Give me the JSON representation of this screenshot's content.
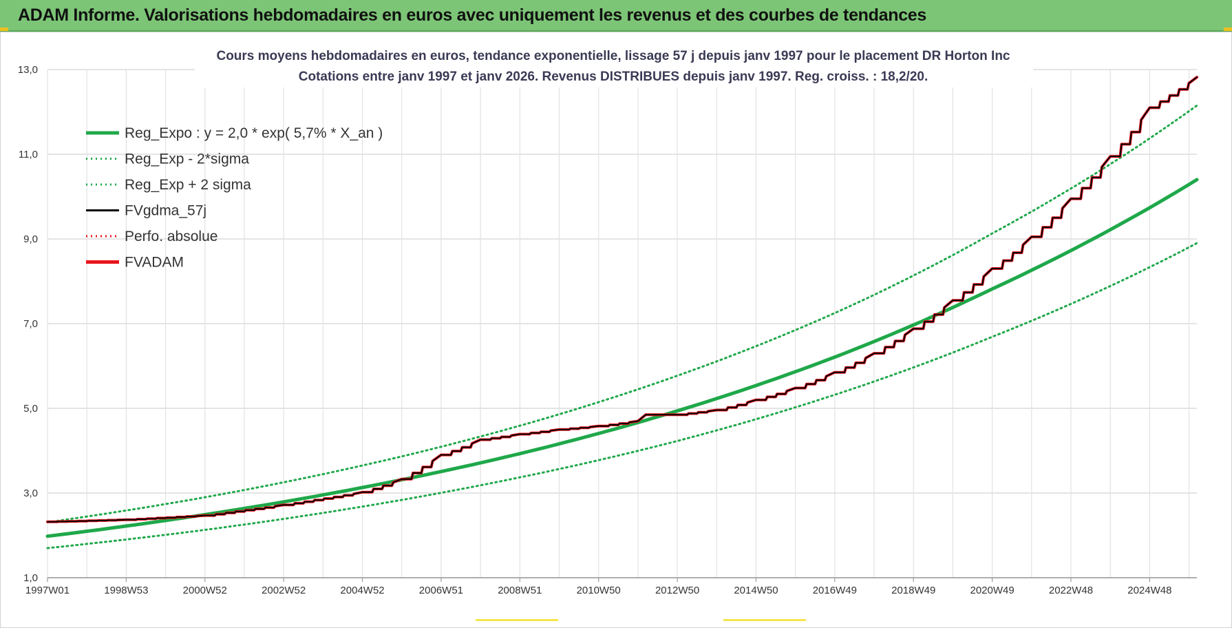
{
  "header": {
    "title": "ADAM Informe. Valorisations hebdomadaires en euros avec uniquement les revenus et des courbes de tendances"
  },
  "chart_data": {
    "type": "line",
    "title": "Cours moyens hebdomadaires en euros, tendance exponentielle, lissage 57 j depuis janv 1997  pour le placement DR Horton Inc",
    "subtitle": "Cotations entre janv 1997 et janv 2026. Revenus DISTRIBUES depuis janv 1997. Reg. croiss. : 18,2/20.",
    "xlabel": "",
    "ylabel": "",
    "x_range": [
      1997.0,
      2026.2
    ],
    "ylim": [
      1.0,
      13.0
    ],
    "y_ticks": [
      "1,0",
      "3,0",
      "5,0",
      "7,0",
      "9,0",
      "11,0",
      "13,0"
    ],
    "y_tick_values": [
      1,
      3,
      5,
      7,
      9,
      11,
      13
    ],
    "x_tick_labels": [
      "1997W01",
      "1998W53",
      "2000W52",
      "2002W52",
      "2004W52",
      "2006W51",
      "2008W51",
      "2010W50",
      "2012W50",
      "2014W50",
      "2016W49",
      "2018W49",
      "2020W49",
      "2022W48",
      "2024W48"
    ],
    "x_tick_years": [
      1997.0,
      1999.0,
      2001.0,
      2003.0,
      2005.0,
      2007.0,
      2009.0,
      2011.0,
      2013.0,
      2015.0,
      2017.0,
      2019.0,
      2021.0,
      2023.0,
      2025.0
    ],
    "grid": true,
    "legend_position": "top-left",
    "series": [
      {
        "name": "Reg_Expo : y = 2,0 * exp( 5,7% *  X_an )",
        "color": "#1fa84a",
        "style": "solid",
        "width": 5,
        "x": [
          1997,
          2001,
          2005,
          2009,
          2013,
          2017,
          2021,
          2026.2
        ],
        "values": [
          1.98,
          2.49,
          3.13,
          3.93,
          4.94,
          6.21,
          7.82,
          10.4
        ]
      },
      {
        "name": "Reg_Exp - 2*sigma",
        "color": "#1fa84a",
        "style": "dotted",
        "width": 3,
        "x": [
          1997,
          2001,
          2005,
          2009,
          2013,
          2017,
          2021,
          2026.2
        ],
        "values": [
          1.7,
          2.13,
          2.68,
          3.37,
          4.23,
          5.32,
          6.69,
          8.9
        ]
      },
      {
        "name": "Reg_Exp + 2 sigma",
        "color": "#1fa84a",
        "style": "dotted",
        "width": 3,
        "x": [
          1997,
          2001,
          2005,
          2009,
          2013,
          2017,
          2021,
          2026.2
        ],
        "values": [
          2.31,
          2.9,
          3.65,
          4.59,
          5.77,
          7.25,
          9.13,
          12.15
        ]
      },
      {
        "name": "FVgdma_57j",
        "color": "#000000",
        "style": "solid",
        "width": 2,
        "x": [
          1997,
          1999,
          2001,
          2003,
          2005,
          2006,
          2007,
          2008,
          2009,
          2010,
          2011,
          2012,
          2012.2,
          2013,
          2014,
          2015,
          2016,
          2017,
          2018,
          2019,
          2020,
          2021,
          2022,
          2023,
          2024,
          2025,
          2026.2
        ],
        "values": [
          2.32,
          2.37,
          2.47,
          2.72,
          3.02,
          3.33,
          3.9,
          4.26,
          4.39,
          4.5,
          4.58,
          4.7,
          4.85,
          4.85,
          4.96,
          5.2,
          5.48,
          5.85,
          6.3,
          6.88,
          7.55,
          8.3,
          9.05,
          9.95,
          10.95,
          12.1,
          12.82
        ]
      },
      {
        "name": "Perfo. absolue",
        "color": "#e8141b",
        "style": "dotted",
        "width": 2,
        "x": [
          1997,
          1999,
          2001,
          2003,
          2005,
          2006,
          2007,
          2008,
          2009,
          2010,
          2011,
          2012,
          2012.2,
          2013,
          2014,
          2015,
          2016,
          2017,
          2018,
          2019,
          2020,
          2021,
          2022,
          2023,
          2024,
          2025,
          2026.2
        ],
        "values": [
          2.32,
          2.37,
          2.47,
          2.72,
          3.02,
          3.33,
          3.9,
          4.26,
          4.39,
          4.5,
          4.58,
          4.7,
          4.85,
          4.85,
          4.96,
          5.2,
          5.48,
          5.85,
          6.3,
          6.88,
          7.55,
          8.3,
          9.05,
          9.95,
          10.95,
          12.1,
          12.82
        ]
      },
      {
        "name": "FVADAM",
        "color": "#e8141b",
        "style": "solid",
        "width": 4,
        "x": [
          1997,
          1999,
          2001,
          2003,
          2005,
          2006,
          2007,
          2008,
          2009,
          2010,
          2011,
          2012,
          2012.2,
          2013,
          2014,
          2015,
          2016,
          2017,
          2018,
          2019,
          2020,
          2021,
          2022,
          2023,
          2024,
          2025,
          2026.2
        ],
        "values": [
          2.32,
          2.37,
          2.47,
          2.72,
          3.02,
          3.33,
          3.9,
          4.26,
          4.39,
          4.5,
          4.58,
          4.7,
          4.85,
          4.85,
          4.96,
          5.2,
          5.48,
          5.85,
          6.3,
          6.88,
          7.55,
          8.3,
          9.05,
          9.95,
          10.95,
          12.1,
          12.82
        ]
      }
    ]
  }
}
